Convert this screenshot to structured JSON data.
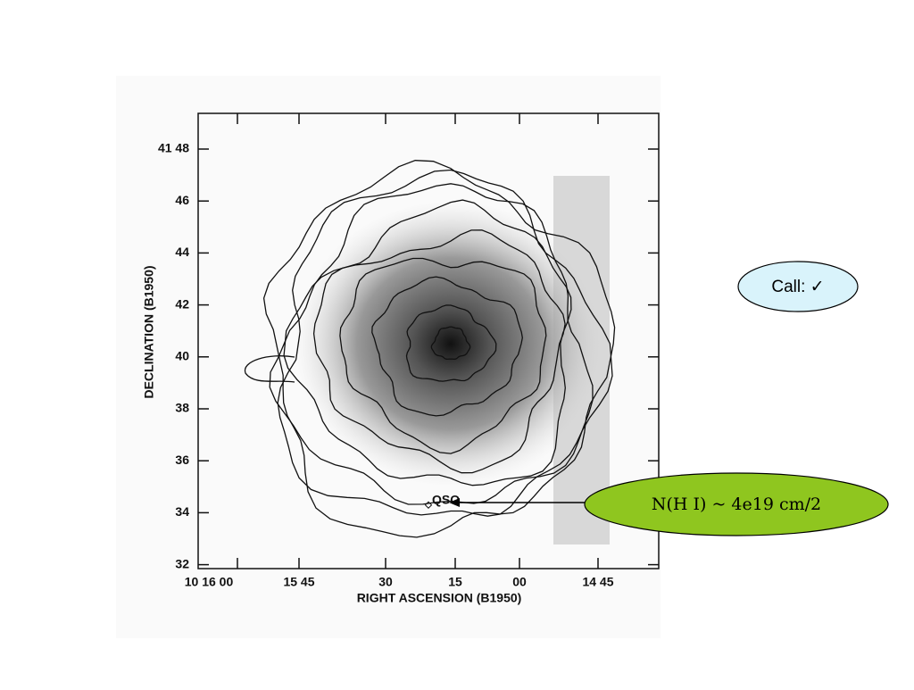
{
  "figure": {
    "y_axis_label": "DECLINATION (B1950)",
    "x_axis_label": "RIGHT ASCENSION (B1950)",
    "y_tick_labels": [
      "41 48",
      "46",
      "44",
      "42",
      "40",
      "38",
      "36",
      "34",
      "32"
    ],
    "x_tick_labels": [
      "10 16 00",
      "15 45",
      "30",
      "15",
      "00",
      "14 45"
    ],
    "annotation": "QSO"
  },
  "call_bubble": {
    "text": "Call: ✓"
  },
  "column_density_bubble": {
    "text": "N(H I) ~ 4e19 cm/2"
  }
}
